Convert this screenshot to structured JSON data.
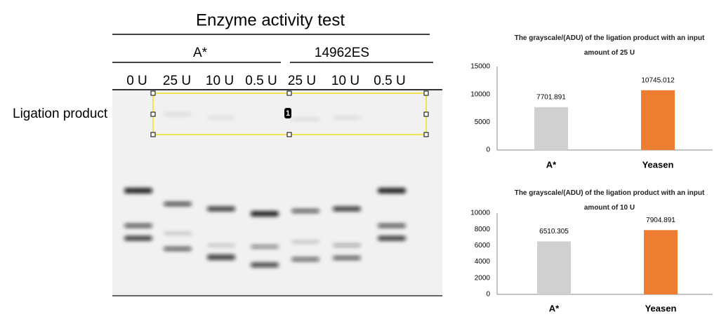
{
  "gel": {
    "title": "Enzyme activity test",
    "groups": [
      "A*",
      "14962ES"
    ],
    "lanes": [
      "0 U",
      "25 U",
      "10 U",
      "0.5 U",
      "25 U",
      "10 U",
      "0.5 U"
    ],
    "row_label": "Ligation product",
    "badge": "1"
  },
  "chart_data": [
    {
      "type": "bar",
      "title": "The grayscale/(ADU) of the ligation product with an input amount of 25 U",
      "categories": [
        "A*",
        "Yeasen"
      ],
      "values": [
        7701.891,
        10745.012
      ],
      "colors": [
        "#d0d0d0",
        "#ed7d31"
      ],
      "ylim": [
        0,
        15000
      ],
      "yticks": [
        0,
        5000,
        10000,
        15000
      ],
      "grid": false
    },
    {
      "type": "bar",
      "title": "The grayscale/(ADU) of the ligation product with an input amount of 10 U",
      "categories": [
        "A*",
        "Yeasen"
      ],
      "values": [
        6510.305,
        7904.891
      ],
      "colors": [
        "#d0d0d0",
        "#ed7d31"
      ],
      "ylim": [
        0,
        10000
      ],
      "yticks": [
        0,
        2000,
        4000,
        6000,
        8000,
        10000
      ],
      "grid": false
    }
  ]
}
